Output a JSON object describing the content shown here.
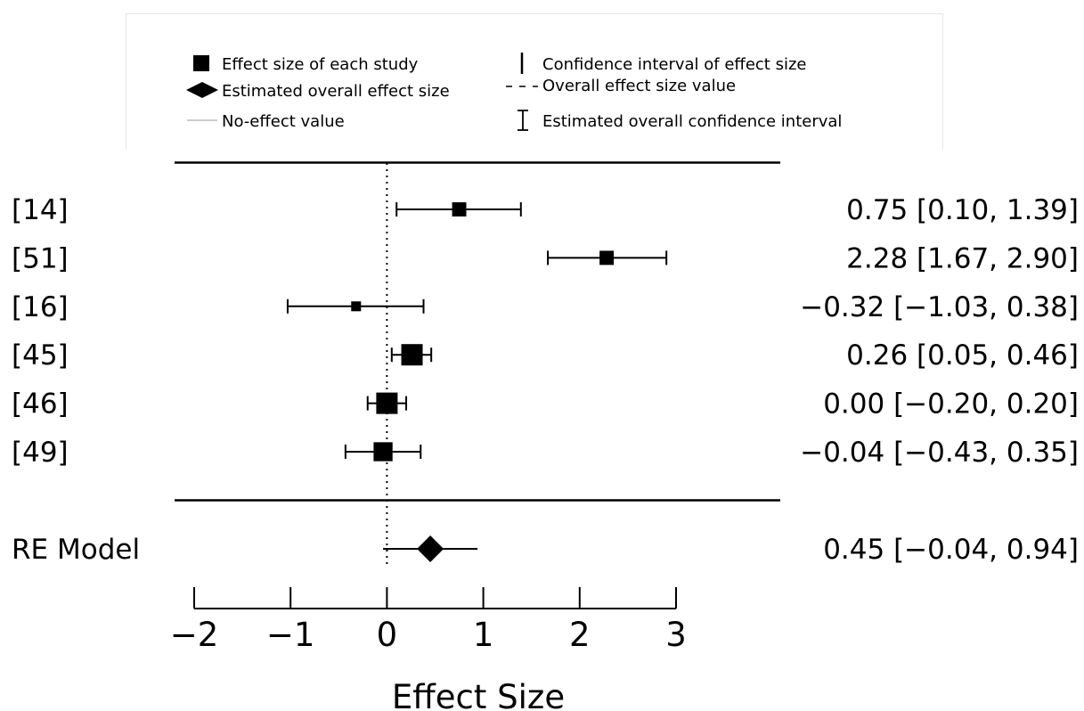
{
  "legend": {
    "study_effect": "Effect size of each study",
    "overall_effect": "Estimated overall effect size",
    "no_effect": "No-effect value",
    "ci": "Confidence interval of effect size",
    "overall_value": "Overall effect size value",
    "overall_ci": "Estimated overall confidence interval"
  },
  "chart_data": {
    "type": "forest",
    "xlabel": "Effect Size",
    "xlim": [
      -2,
      3
    ],
    "xticks": [
      -2,
      -1,
      0,
      1,
      2,
      3
    ],
    "tick_labels": [
      "−2",
      "−1",
      "0",
      "1",
      "2",
      "3"
    ],
    "no_effect_value": 0,
    "studies": [
      {
        "label": "[14]",
        "estimate": 0.75,
        "ci_low": 0.1,
        "ci_high": 1.39,
        "text": "0.75 [0.10, 1.39]",
        "weight": 0.55
      },
      {
        "label": "[51]",
        "estimate": 2.28,
        "ci_low": 1.67,
        "ci_high": 2.9,
        "text": "2.28 [1.67, 2.90]",
        "weight": 0.55
      },
      {
        "label": "[16]",
        "estimate": -0.32,
        "ci_low": -1.03,
        "ci_high": 0.38,
        "text": "−0.32 [−1.03, 0.38]",
        "weight": 0.28
      },
      {
        "label": "[45]",
        "estimate": 0.26,
        "ci_low": 0.05,
        "ci_high": 0.46,
        "text": "0.26 [0.05, 0.46]",
        "weight": 1.0
      },
      {
        "label": "[46]",
        "estimate": 0.0,
        "ci_low": -0.2,
        "ci_high": 0.2,
        "text": "0.00 [−0.20, 0.20]",
        "weight": 1.0
      },
      {
        "label": "[49]",
        "estimate": -0.04,
        "ci_low": -0.43,
        "ci_high": 0.35,
        "text": "−0.04 [−0.43, 0.35]",
        "weight": 0.85
      }
    ],
    "summary": {
      "label": "RE Model",
      "estimate": 0.45,
      "ci_low": -0.04,
      "ci_high": 0.94,
      "text": "0.45 [−0.04, 0.94]"
    }
  }
}
